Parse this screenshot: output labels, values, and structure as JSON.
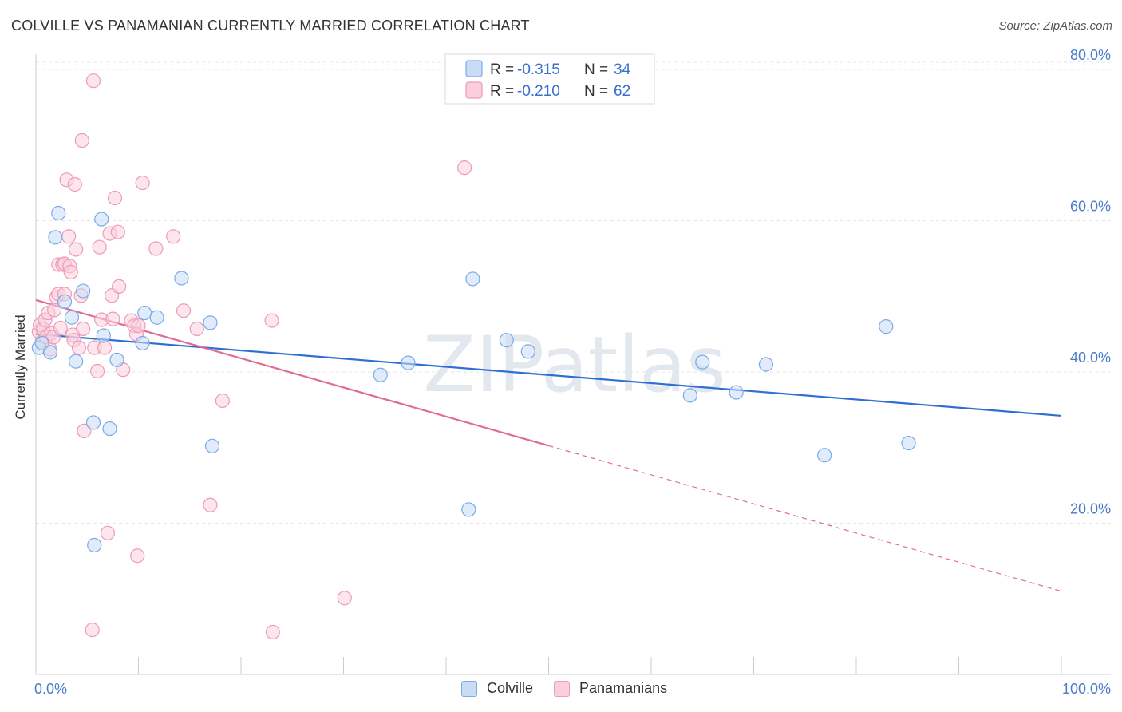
{
  "chart_data": {
    "type": "scatter",
    "title": "COLVILLE VS PANAMANIAN CURRENTLY MARRIED CORRELATION CHART",
    "source": "Source: ZipAtlas.com",
    "xlabel": "",
    "ylabel": "Currently Married",
    "xlim": [
      0,
      100
    ],
    "ylim": [
      0,
      82
    ],
    "x_tick_labels": [
      "0.0%",
      "100.0%"
    ],
    "y_ticks": [
      20,
      40,
      60,
      80
    ],
    "y_tick_labels": [
      "20.0%",
      "40.0%",
      "60.0%",
      "80.0%"
    ],
    "watermark": "ZIPatlas",
    "legend": [
      {
        "name": "Colville",
        "r_label": "R =",
        "r": "-0.315",
        "n_label": "N =",
        "n": "34"
      },
      {
        "name": "Panamanians",
        "r_label": "R =",
        "r": "-0.210",
        "n_label": "N =",
        "n": "62"
      }
    ],
    "series": [
      {
        "name": "Colville",
        "color": "#7aaae8",
        "fill": "#c9dcf6",
        "line_color": "#2f6fd3",
        "trend": {
          "x0": 0,
          "y0": 45.0,
          "x1": 100,
          "y1": 34.2,
          "solid_until": 100
        },
        "points": [
          [
            0.3,
            43.2
          ],
          [
            0.6,
            43.8
          ],
          [
            1.4,
            42.6
          ],
          [
            1.9,
            57.8
          ],
          [
            2.2,
            61.0
          ],
          [
            2.8,
            49.3
          ],
          [
            3.5,
            47.2
          ],
          [
            3.9,
            41.4
          ],
          [
            4.6,
            50.7
          ],
          [
            5.6,
            33.3
          ],
          [
            5.7,
            17.1
          ],
          [
            6.4,
            60.2
          ],
          [
            6.6,
            44.8
          ],
          [
            7.2,
            32.5
          ],
          [
            7.9,
            41.6
          ],
          [
            10.4,
            43.8
          ],
          [
            10.6,
            47.8
          ],
          [
            11.8,
            47.2
          ],
          [
            14.2,
            52.4
          ],
          [
            17.0,
            46.5
          ],
          [
            17.2,
            30.2
          ],
          [
            33.6,
            39.6
          ],
          [
            36.3,
            41.2
          ],
          [
            42.2,
            21.8
          ],
          [
            42.6,
            52.3
          ],
          [
            45.9,
            44.2
          ],
          [
            48.0,
            42.7
          ],
          [
            63.8,
            36.9
          ],
          [
            65.0,
            41.3
          ],
          [
            68.3,
            37.3
          ],
          [
            71.2,
            41.0
          ],
          [
            76.9,
            29.0
          ],
          [
            82.9,
            46.0
          ],
          [
            85.1,
            30.6
          ]
        ]
      },
      {
        "name": "Panamanians",
        "color": "#ef9ab6",
        "fill": "#f9cfdc",
        "line_color": "#e06b96",
        "trend": {
          "x0": 0,
          "y0": 49.5,
          "x1": 100,
          "y1": 11.0,
          "solid_until": 50
        },
        "points": [
          [
            0.3,
            45.3
          ],
          [
            0.4,
            46.2
          ],
          [
            0.6,
            44.0
          ],
          [
            0.7,
            45.7
          ],
          [
            0.9,
            46.9
          ],
          [
            1.0,
            44.6
          ],
          [
            1.2,
            47.8
          ],
          [
            1.4,
            43.0
          ],
          [
            1.5,
            45.1
          ],
          [
            1.7,
            44.6
          ],
          [
            1.8,
            48.2
          ],
          [
            2.0,
            49.9
          ],
          [
            2.2,
            50.3
          ],
          [
            2.2,
            54.2
          ],
          [
            2.4,
            45.8
          ],
          [
            2.6,
            54.2
          ],
          [
            2.8,
            54.3
          ],
          [
            2.8,
            50.3
          ],
          [
            3.0,
            65.4
          ],
          [
            3.2,
            57.9
          ],
          [
            3.3,
            54.0
          ],
          [
            3.4,
            53.2
          ],
          [
            3.6,
            44.9
          ],
          [
            3.7,
            44.2
          ],
          [
            3.8,
            64.8
          ],
          [
            3.9,
            56.2
          ],
          [
            4.2,
            43.2
          ],
          [
            4.4,
            50.1
          ],
          [
            4.5,
            70.6
          ],
          [
            4.6,
            45.7
          ],
          [
            4.7,
            32.2
          ],
          [
            5.5,
            5.9
          ],
          [
            5.6,
            78.5
          ],
          [
            5.7,
            43.2
          ],
          [
            6.0,
            40.1
          ],
          [
            6.2,
            56.5
          ],
          [
            6.4,
            46.9
          ],
          [
            6.7,
            43.2
          ],
          [
            7.0,
            18.7
          ],
          [
            7.2,
            58.3
          ],
          [
            7.4,
            50.1
          ],
          [
            7.5,
            47.0
          ],
          [
            7.7,
            63.0
          ],
          [
            8.0,
            58.5
          ],
          [
            8.1,
            51.3
          ],
          [
            8.5,
            40.3
          ],
          [
            9.3,
            46.8
          ],
          [
            9.6,
            46.1
          ],
          [
            9.8,
            45.0
          ],
          [
            9.9,
            15.7
          ],
          [
            10.0,
            46.1
          ],
          [
            10.4,
            65.0
          ],
          [
            11.7,
            56.3
          ],
          [
            13.4,
            57.9
          ],
          [
            14.4,
            48.1
          ],
          [
            15.7,
            45.7
          ],
          [
            17.0,
            22.4
          ],
          [
            18.2,
            36.2
          ],
          [
            23.0,
            46.8
          ],
          [
            23.1,
            5.6
          ],
          [
            30.1,
            10.1
          ],
          [
            41.8,
            67.0
          ]
        ]
      }
    ]
  }
}
